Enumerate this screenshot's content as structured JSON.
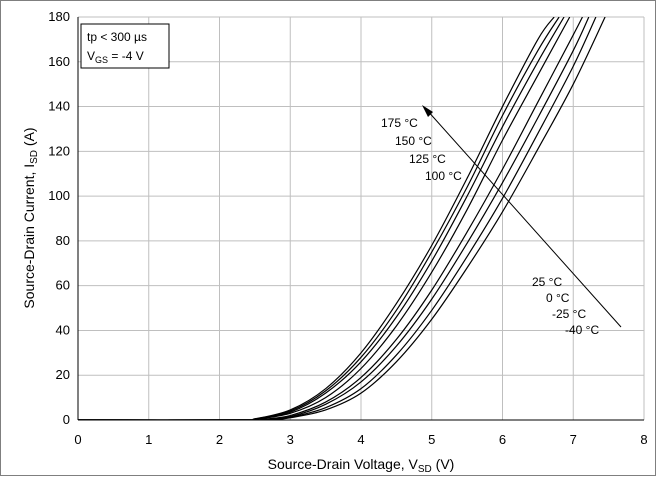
{
  "chart_data": {
    "type": "line",
    "xlabel": {
      "main": "Source-Drain Voltage, V",
      "sub": "SD",
      "unit": " (V)"
    },
    "ylabel": {
      "main": "Source-Drain Current, I",
      "sub": "SD",
      "unit": " (A)"
    },
    "xlim": [
      0,
      8
    ],
    "ylim": [
      0,
      180
    ],
    "xticks": [
      "0",
      "1",
      "2",
      "3",
      "4",
      "5",
      "6",
      "7",
      "8"
    ],
    "yticks": [
      "0",
      "20",
      "40",
      "60",
      "80",
      "100",
      "120",
      "140",
      "160",
      "180"
    ],
    "grid": true,
    "conditions": {
      "line1": "tp < 300 µs",
      "line2_main": "V",
      "line2_sub": "GS",
      "line2_rest": " = -4 V"
    },
    "arrow_labels_top": [
      "175 °C",
      "150 °C",
      "125 °C",
      "100 °C"
    ],
    "arrow_labels_bottom": [
      "25 °C",
      "0 °C",
      "-25 °C",
      "-40 °C"
    ],
    "series": [
      {
        "name": "175 °C",
        "x": [
          0,
          2.3,
          2.5,
          3.0,
          3.5,
          4.0,
          4.5,
          5.0,
          5.5,
          6.0,
          6.5,
          6.73
        ],
        "y": [
          0,
          0,
          0.5,
          4.5,
          14,
          30,
          52,
          78,
          108,
          140,
          170,
          180
        ]
      },
      {
        "name": "150 °C",
        "x": [
          0,
          2.3,
          2.5,
          3.0,
          3.5,
          4.0,
          4.5,
          5.0,
          5.5,
          6.0,
          6.5,
          6.8
        ],
        "y": [
          0,
          0,
          0.5,
          4,
          13,
          28,
          49,
          75,
          104,
          136,
          165,
          180
        ]
      },
      {
        "name": "125 °C",
        "x": [
          0,
          2.3,
          2.5,
          3.0,
          3.5,
          4.0,
          4.5,
          5.0,
          5.5,
          6.0,
          6.5,
          6.87
        ],
        "y": [
          0,
          0,
          0.4,
          3.5,
          12,
          26,
          46,
          71,
          100,
          131,
          160,
          180
        ]
      },
      {
        "name": "100 °C",
        "x": [
          0,
          2.3,
          2.5,
          3.0,
          3.5,
          4.0,
          4.5,
          5.0,
          5.5,
          6.0,
          6.5,
          6.95
        ],
        "y": [
          0,
          0,
          0.3,
          3,
          10,
          23,
          42,
          66,
          94,
          125,
          154,
          180
        ]
      },
      {
        "name": "25 °C",
        "x": [
          0,
          2.4,
          2.6,
          3.0,
          3.5,
          4.0,
          4.5,
          5.0,
          5.5,
          6.0,
          6.5,
          7.0,
          7.13
        ],
        "y": [
          0,
          0,
          0.3,
          2,
          8,
          19,
          36,
          58,
          84,
          112,
          142,
          172,
          180
        ]
      },
      {
        "name": "0 °C",
        "x": [
          0,
          2.4,
          2.6,
          3.0,
          3.5,
          4.0,
          4.5,
          5.0,
          5.5,
          6.0,
          6.5,
          7.0,
          7.22
        ],
        "y": [
          0,
          0,
          0.2,
          1.5,
          7,
          17,
          33,
          54,
          79,
          106,
          135,
          165,
          180
        ]
      },
      {
        "name": "-25 °C",
        "x": [
          0,
          2.5,
          2.7,
          3.0,
          3.5,
          4.0,
          4.5,
          5.0,
          5.5,
          6.0,
          6.5,
          7.0,
          7.32
        ],
        "y": [
          0,
          0,
          0.2,
          1.2,
          5.5,
          14,
          29,
          49,
          73,
          99,
          128,
          158,
          180
        ]
      },
      {
        "name": "-40 °C",
        "x": [
          0,
          2.5,
          2.7,
          3.0,
          3.5,
          4.0,
          4.5,
          5.0,
          5.5,
          6.0,
          6.5,
          7.0,
          7.45
        ],
        "y": [
          0,
          0,
          0.1,
          1,
          4.5,
          12,
          26,
          45,
          68,
          93,
          121,
          150,
          180
        ]
      }
    ]
  }
}
